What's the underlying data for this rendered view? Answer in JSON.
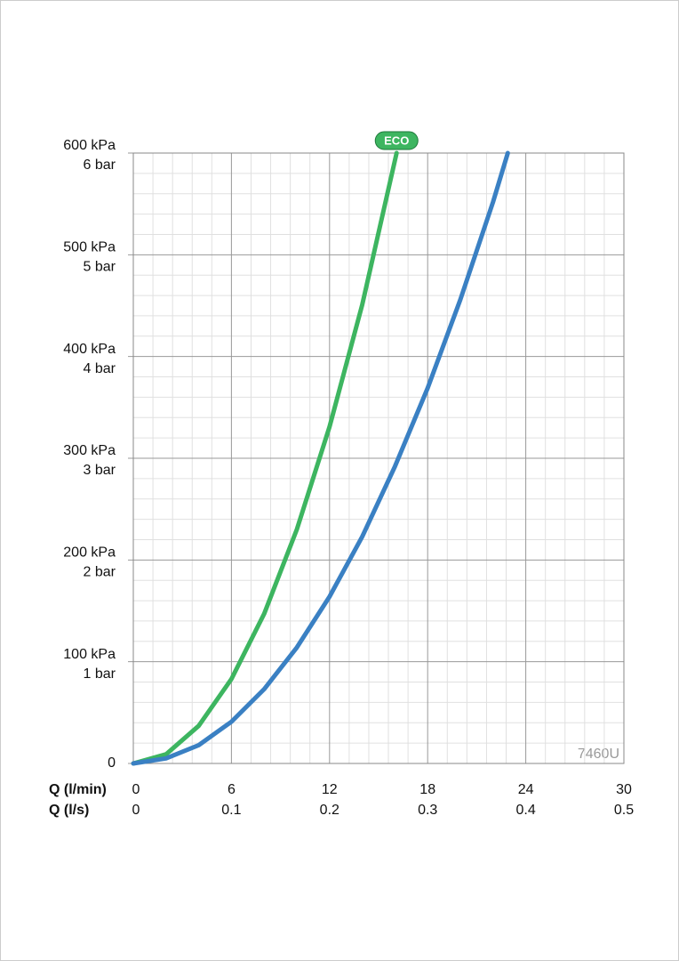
{
  "chart_data": {
    "type": "line",
    "xlabel": "Q (l/min)",
    "xlim": [
      0,
      30
    ],
    "xticks": [
      0,
      6,
      12,
      18,
      24,
      30
    ],
    "x2label": "Q (l/s)",
    "x2lim": [
      0,
      0.5
    ],
    "x2ticks": [
      0,
      0.1,
      0.2,
      0.3,
      0.4,
      0.5
    ],
    "ylim": [
      0,
      600
    ],
    "yticks": [
      0,
      {
        "value": 100,
        "label": "100 kPa"
      },
      {
        "value": 200,
        "label": "200 kPa"
      },
      {
        "value": 300,
        "label": "300 kPa"
      },
      {
        "value": 400,
        "label": "400 kPa"
      },
      {
        "value": 500,
        "label": "500 kPa"
      },
      {
        "value": 600,
        "label": "600 kPa"
      }
    ],
    "ytick_bar_labels": [
      null,
      "1 bar",
      "2 bar",
      "3 bar",
      "4 bar",
      "5 bar",
      "6 bar"
    ],
    "grid": true,
    "minor_grid_divisions": 5,
    "annotation": "7460U",
    "series": [
      {
        "name": "ECO",
        "color": "#3db560",
        "x": [
          0,
          2,
          4,
          6,
          8,
          10,
          12,
          14,
          16.1
        ],
        "values": [
          0,
          9,
          37,
          83,
          147,
          230,
          331,
          451,
          600
        ]
      },
      {
        "color": "#3a80c3",
        "x": [
          0,
          2,
          4,
          6,
          8,
          10,
          12,
          14,
          16,
          18,
          20,
          22,
          22.9
        ],
        "values": [
          0,
          5,
          18,
          41,
          73,
          114,
          164,
          223,
          292,
          369,
          456,
          552,
          600
        ]
      }
    ]
  }
}
